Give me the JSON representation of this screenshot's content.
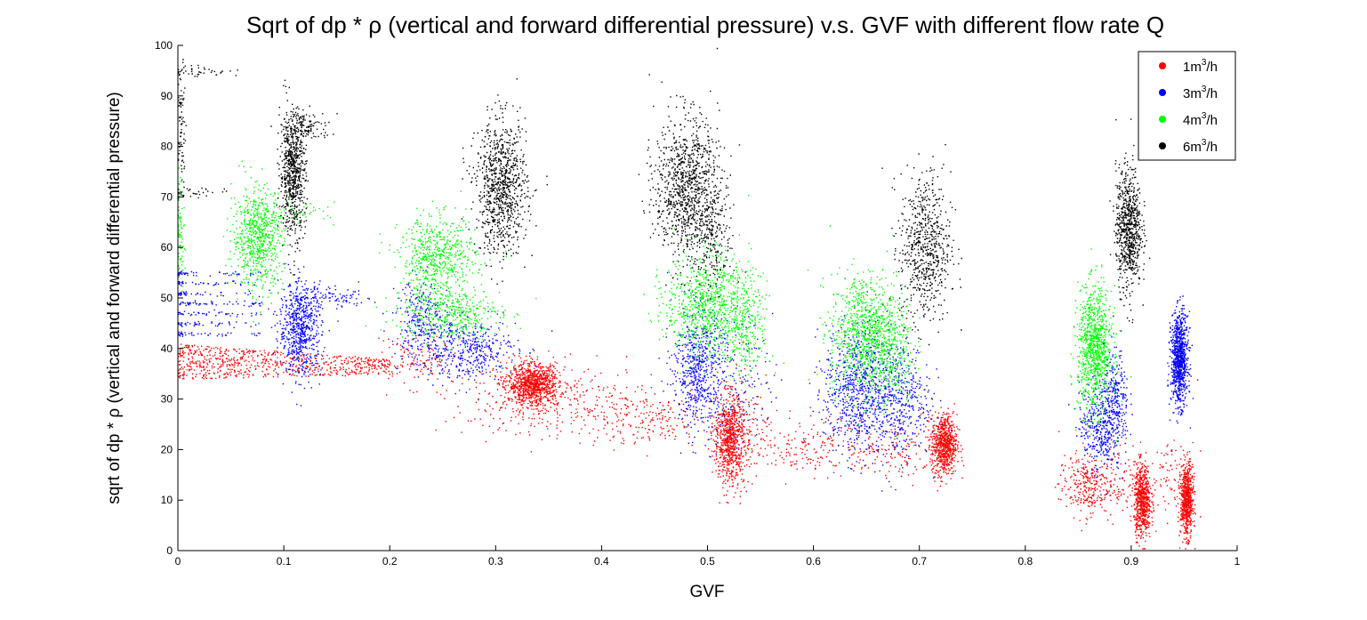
{
  "chart_data": {
    "type": "scatter",
    "title": "Sqrt of dp * ρ (vertical and forward differential pressure) v.s. GVF with different flow rate Q",
    "xlabel": "GVF",
    "ylabel": "sqrt of dp * ρ (vertical and forward differential pressure)",
    "xlim": [
      0,
      1
    ],
    "ylim": [
      0,
      100
    ],
    "x_ticks": [
      0,
      0.1,
      0.2,
      0.3,
      0.4,
      0.5,
      0.6,
      0.7,
      0.8,
      0.9,
      1
    ],
    "x_tick_labels": [
      "0",
      "0.1",
      "0.2",
      "0.3",
      "0.4",
      "0.5",
      "0.6",
      "0.7",
      "0.8",
      "0.9",
      "1"
    ],
    "y_ticks": [
      0,
      10,
      20,
      30,
      40,
      50,
      60,
      70,
      80,
      90,
      100
    ],
    "y_tick_labels": [
      "0",
      "10",
      "20",
      "30",
      "40",
      "50",
      "60",
      "70",
      "80",
      "90",
      "100"
    ],
    "grid": false,
    "legend_position": "top-right",
    "series": [
      {
        "name": "1m3/h",
        "legend_base": "1m",
        "legend_sup": "3",
        "legend_unit": "/h",
        "color": "#ff0000",
        "clusters": [
          {
            "x": 0.06,
            "y": 37,
            "sx": 0.05,
            "sy": 2.2,
            "n": 700,
            "kind": "band",
            "x0": 0.0,
            "x1": 0.2,
            "y0a": 34,
            "y0b": 41,
            "y1a": 35,
            "y1b": 38
          },
          {
            "x": 0.22,
            "y": 38,
            "sx": 0.025,
            "sy": 2.5,
            "n": 120
          },
          {
            "x": 0.335,
            "y": 33,
            "sx": 0.012,
            "sy": 2.0,
            "n": 900
          },
          {
            "x": 0.35,
            "y": 30,
            "sx": 0.05,
            "sy": 3.5,
            "n": 350
          },
          {
            "x": 0.44,
            "y": 26,
            "sx": 0.035,
            "sy": 2.5,
            "n": 200
          },
          {
            "x": 0.52,
            "y": 22,
            "sx": 0.007,
            "sy": 4.5,
            "n": 700
          },
          {
            "x": 0.53,
            "y": 24,
            "sx": 0.012,
            "sy": 5.0,
            "n": 150
          },
          {
            "x": 0.6,
            "y": 21,
            "sx": 0.03,
            "sy": 3.0,
            "n": 200
          },
          {
            "x": 0.68,
            "y": 20,
            "sx": 0.025,
            "sy": 3.0,
            "n": 120
          },
          {
            "x": 0.723,
            "y": 21,
            "sx": 0.006,
            "sy": 3.0,
            "n": 700
          },
          {
            "x": 0.855,
            "y": 13,
            "sx": 0.012,
            "sy": 3.0,
            "n": 250
          },
          {
            "x": 0.885,
            "y": 14,
            "sx": 0.015,
            "sy": 3.5,
            "n": 120
          },
          {
            "x": 0.91,
            "y": 10,
            "sx": 0.004,
            "sy": 3.5,
            "n": 650
          },
          {
            "x": 0.952,
            "y": 10,
            "sx": 0.003,
            "sy": 3.5,
            "n": 650
          },
          {
            "x": 0.94,
            "y": 15,
            "sx": 0.01,
            "sy": 3.5,
            "n": 80
          }
        ]
      },
      {
        "name": "3m3/h",
        "legend_base": "3m",
        "legend_sup": "3",
        "legend_unit": "/h",
        "color": "#0000ff",
        "clusters": [
          {
            "x": 0.04,
            "y": 49,
            "sx": 0.03,
            "sy": 4.0,
            "n": 300,
            "kind": "rows",
            "rows": [
              43,
              45,
              47,
              49,
              51,
              53,
              55
            ],
            "x0": 0.0,
            "x1": 0.08
          },
          {
            "x": 0.115,
            "y": 44,
            "sx": 0.01,
            "sy": 4.5,
            "n": 650
          },
          {
            "x": 0.14,
            "y": 50,
            "sx": 0.025,
            "sy": 1.0,
            "n": 100
          },
          {
            "x": 0.23,
            "y": 46,
            "sx": 0.012,
            "sy": 4.0,
            "n": 250
          },
          {
            "x": 0.27,
            "y": 40,
            "sx": 0.025,
            "sy": 3.0,
            "n": 450
          },
          {
            "x": 0.49,
            "y": 36,
            "sx": 0.012,
            "sy": 6.0,
            "n": 550
          },
          {
            "x": 0.52,
            "y": 34,
            "sx": 0.02,
            "sy": 6.0,
            "n": 200
          },
          {
            "x": 0.64,
            "y": 32,
            "sx": 0.015,
            "sy": 6.5,
            "n": 700
          },
          {
            "x": 0.68,
            "y": 30,
            "sx": 0.015,
            "sy": 6.0,
            "n": 450
          },
          {
            "x": 0.87,
            "y": 25,
            "sx": 0.01,
            "sy": 4.5,
            "n": 400
          },
          {
            "x": 0.885,
            "y": 30,
            "sx": 0.006,
            "sy": 5.0,
            "n": 250
          },
          {
            "x": 0.945,
            "y": 38,
            "sx": 0.004,
            "sy": 4.5,
            "n": 900
          }
        ]
      },
      {
        "name": "4m3/h",
        "legend_base": "4m",
        "legend_sup": "3",
        "legend_unit": "/h",
        "color": "#00ff00",
        "clusters": [
          {
            "x": 0.002,
            "y": 64,
            "sx": 0.002,
            "sy": 5.0,
            "n": 80
          },
          {
            "x": 0.075,
            "y": 62,
            "sx": 0.012,
            "sy": 5.0,
            "n": 700
          },
          {
            "x": 0.11,
            "y": 67,
            "sx": 0.02,
            "sy": 1.0,
            "n": 60
          },
          {
            "x": 0.245,
            "y": 58,
            "sx": 0.018,
            "sy": 4.0,
            "n": 600
          },
          {
            "x": 0.255,
            "y": 47,
            "sx": 0.025,
            "sy": 2.5,
            "n": 400
          },
          {
            "x": 0.5,
            "y": 49,
            "sx": 0.02,
            "sy": 5.0,
            "n": 850
          },
          {
            "x": 0.535,
            "y": 44,
            "sx": 0.012,
            "sy": 5.0,
            "n": 250
          },
          {
            "x": 0.645,
            "y": 43,
            "sx": 0.015,
            "sy": 6.0,
            "n": 750
          },
          {
            "x": 0.67,
            "y": 41,
            "sx": 0.012,
            "sy": 6.0,
            "n": 400
          },
          {
            "x": 0.865,
            "y": 40,
            "sx": 0.008,
            "sy": 6.0,
            "n": 950
          }
        ]
      },
      {
        "name": "6m3/h",
        "legend_base": "6m",
        "legend_sup": "3",
        "legend_unit": "/h",
        "color": "#000000",
        "clusters": [
          {
            "x": 0.003,
            "y": 84,
            "sx": 0.002,
            "sy": 6.0,
            "n": 80
          },
          {
            "x": 0.02,
            "y": 95,
            "sx": 0.015,
            "sy": 0.6,
            "n": 40
          },
          {
            "x": 0.02,
            "y": 71,
            "sx": 0.015,
            "sy": 0.5,
            "n": 30
          },
          {
            "x": 0.108,
            "y": 75,
            "sx": 0.006,
            "sy": 6.0,
            "n": 700
          },
          {
            "x": 0.12,
            "y": 84,
            "sx": 0.012,
            "sy": 1.5,
            "n": 120
          },
          {
            "x": 0.305,
            "y": 72,
            "sx": 0.012,
            "sy": 6.5,
            "n": 900
          },
          {
            "x": 0.48,
            "y": 72,
            "sx": 0.015,
            "sy": 7.0,
            "n": 1000
          },
          {
            "x": 0.505,
            "y": 62,
            "sx": 0.01,
            "sy": 5.0,
            "n": 200
          },
          {
            "x": 0.705,
            "y": 60,
            "sx": 0.012,
            "sy": 7.5,
            "n": 650
          },
          {
            "x": 0.897,
            "y": 64,
            "sx": 0.006,
            "sy": 6.0,
            "n": 750
          }
        ]
      }
    ]
  }
}
